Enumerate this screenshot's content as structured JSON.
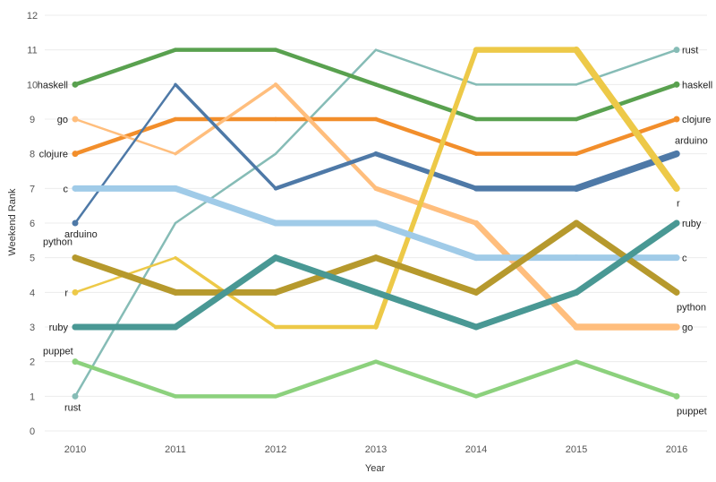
{
  "chart_data": {
    "type": "line",
    "title": "",
    "xlabel": "Year",
    "ylabel": "Weekend Rank",
    "x": [
      2010,
      2011,
      2012,
      2013,
      2014,
      2015,
      2016
    ],
    "x_tick_labels": [
      "2010",
      "2011",
      "2012",
      "2013",
      "2014",
      "2015",
      "2016"
    ],
    "ylim": [
      0,
      12
    ],
    "y_tick_labels": [
      "0",
      "1",
      "2",
      "3",
      "4",
      "5",
      "6",
      "7",
      "8",
      "9",
      "10",
      "11",
      "12"
    ],
    "grid": true,
    "legend": "none",
    "series": [
      {
        "name": "rust",
        "values": [
          1,
          6,
          8,
          11,
          10,
          10,
          11
        ],
        "color": "#86bcb6",
        "weight": "thin",
        "start_label_pos": "below",
        "end_label_pos": "right"
      },
      {
        "name": "haskell",
        "values": [
          10,
          11,
          11,
          10,
          9,
          9,
          10
        ],
        "color": "#59a14f",
        "weight": "medium",
        "start_label_pos": "left",
        "end_label_pos": "right"
      },
      {
        "name": "go",
        "values": [
          9,
          8,
          10,
          7,
          6,
          3,
          3
        ],
        "color": "#ffbe7d",
        "weight": "mixed",
        "start_label_pos": "left",
        "end_label_pos": "right"
      },
      {
        "name": "clojure",
        "values": [
          8,
          9,
          9,
          9,
          8,
          8,
          9
        ],
        "color": "#f28e2b",
        "weight": "medium",
        "start_label_pos": "left",
        "end_label_pos": "right"
      },
      {
        "name": "arduino",
        "values": [
          6,
          10,
          7,
          8,
          7,
          7,
          8
        ],
        "color": "#4e79a7",
        "weight": "mixed",
        "start_label_pos": "below",
        "end_label_pos": "above"
      },
      {
        "name": "c",
        "values": [
          7,
          7,
          6,
          6,
          5,
          5,
          5
        ],
        "color": "#a0cbe8",
        "weight": "thick",
        "start_label_pos": "left",
        "end_label_pos": "right"
      },
      {
        "name": "r",
        "values": [
          4,
          5,
          3,
          3,
          11,
          11,
          7
        ],
        "color": "#edc948",
        "weight": "mixed",
        "start_label_pos": "left",
        "end_label_pos": "below"
      },
      {
        "name": "python",
        "values": [
          5,
          4,
          4,
          5,
          4,
          6,
          4
        ],
        "color": "#b6992d",
        "weight": "thick",
        "start_label_pos": "left-below",
        "end_label_pos": "below"
      },
      {
        "name": "ruby",
        "values": [
          3,
          3,
          5,
          4,
          3,
          4,
          6
        ],
        "color": "#499894",
        "weight": "thick",
        "start_label_pos": "left",
        "end_label_pos": "right"
      },
      {
        "name": "puppet",
        "values": [
          2,
          1,
          1,
          2,
          1,
          2,
          1
        ],
        "color": "#8cd17d",
        "weight": "medium",
        "start_label_pos": "left-above",
        "end_label_pos": "below"
      }
    ]
  }
}
